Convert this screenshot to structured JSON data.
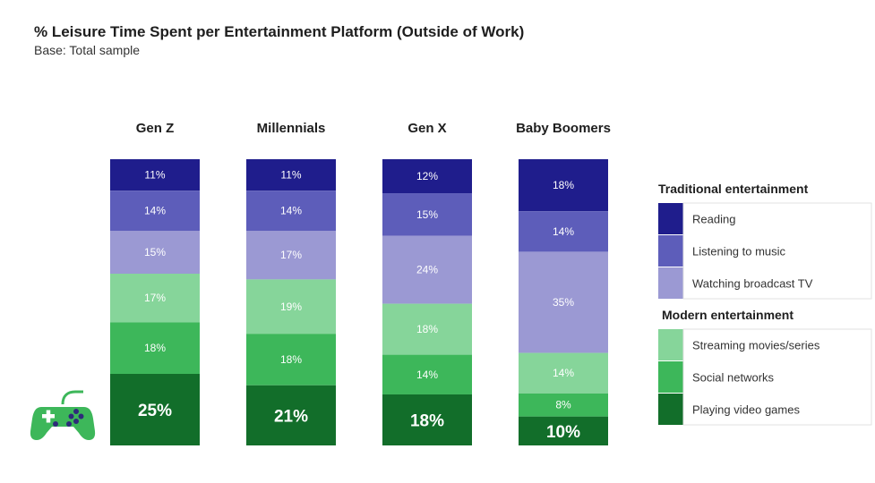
{
  "title": "% Leisure Time Spent per Entertainment Platform (Outside of Work)",
  "subtitle": "Base: Total sample",
  "icon": "gamepad-icon",
  "chart_data": {
    "type": "bar",
    "stacked": true,
    "normalized": true,
    "categories": [
      "Gen Z",
      "Millennials",
      "Gen X",
      "Baby Boomers"
    ],
    "series": [
      {
        "name": "Reading",
        "group": "Traditional entertainment",
        "color": "#1f1d8c",
        "values": [
          11,
          11,
          12,
          18
        ]
      },
      {
        "name": "Listening to music",
        "group": "Traditional entertainment",
        "color": "#5d5dba",
        "values": [
          14,
          14,
          15,
          14
        ]
      },
      {
        "name": "Watching broadcast TV",
        "group": "Traditional entertainment",
        "color": "#9b99d3",
        "values": [
          15,
          17,
          24,
          35
        ]
      },
      {
        "name": "Streaming movies/series",
        "group": "Modern entertainment",
        "color": "#86d59a",
        "values": [
          17,
          19,
          18,
          14
        ]
      },
      {
        "name": "Social networks",
        "group": "Modern entertainment",
        "color": "#3db75a",
        "values": [
          18,
          18,
          14,
          8
        ]
      },
      {
        "name": "Playing video games",
        "group": "Modern entertainment",
        "color": "#126e2a",
        "values": [
          25,
          21,
          18,
          10
        ]
      }
    ],
    "highlight_series": "Playing video games",
    "legend": {
      "position": "right",
      "groups": [
        "Traditional entertainment",
        "Modern entertainment"
      ]
    },
    "value_suffix": "%"
  }
}
